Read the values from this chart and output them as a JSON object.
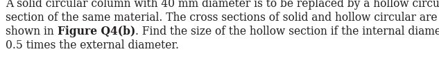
{
  "line1": "A solid circular column with 40 mm diameter is to be replaced by a hollow circular",
  "line2": "section of the same material. The cross sections of solid and hollow circular are",
  "line3_normal1": "shown in ",
  "line3_bold": "Figure Q4(b)",
  "line3_normal2": ". Find the size of the hollow section if the internal diameter is",
  "line4": "0.5 times the external diameter.",
  "fontsize": 11.2,
  "text_color": "#231f20",
  "bg_color": "#ffffff",
  "font_family": "DejaVu Serif",
  "fig_width": 6.33,
  "fig_height": 0.91,
  "dpi": 100
}
